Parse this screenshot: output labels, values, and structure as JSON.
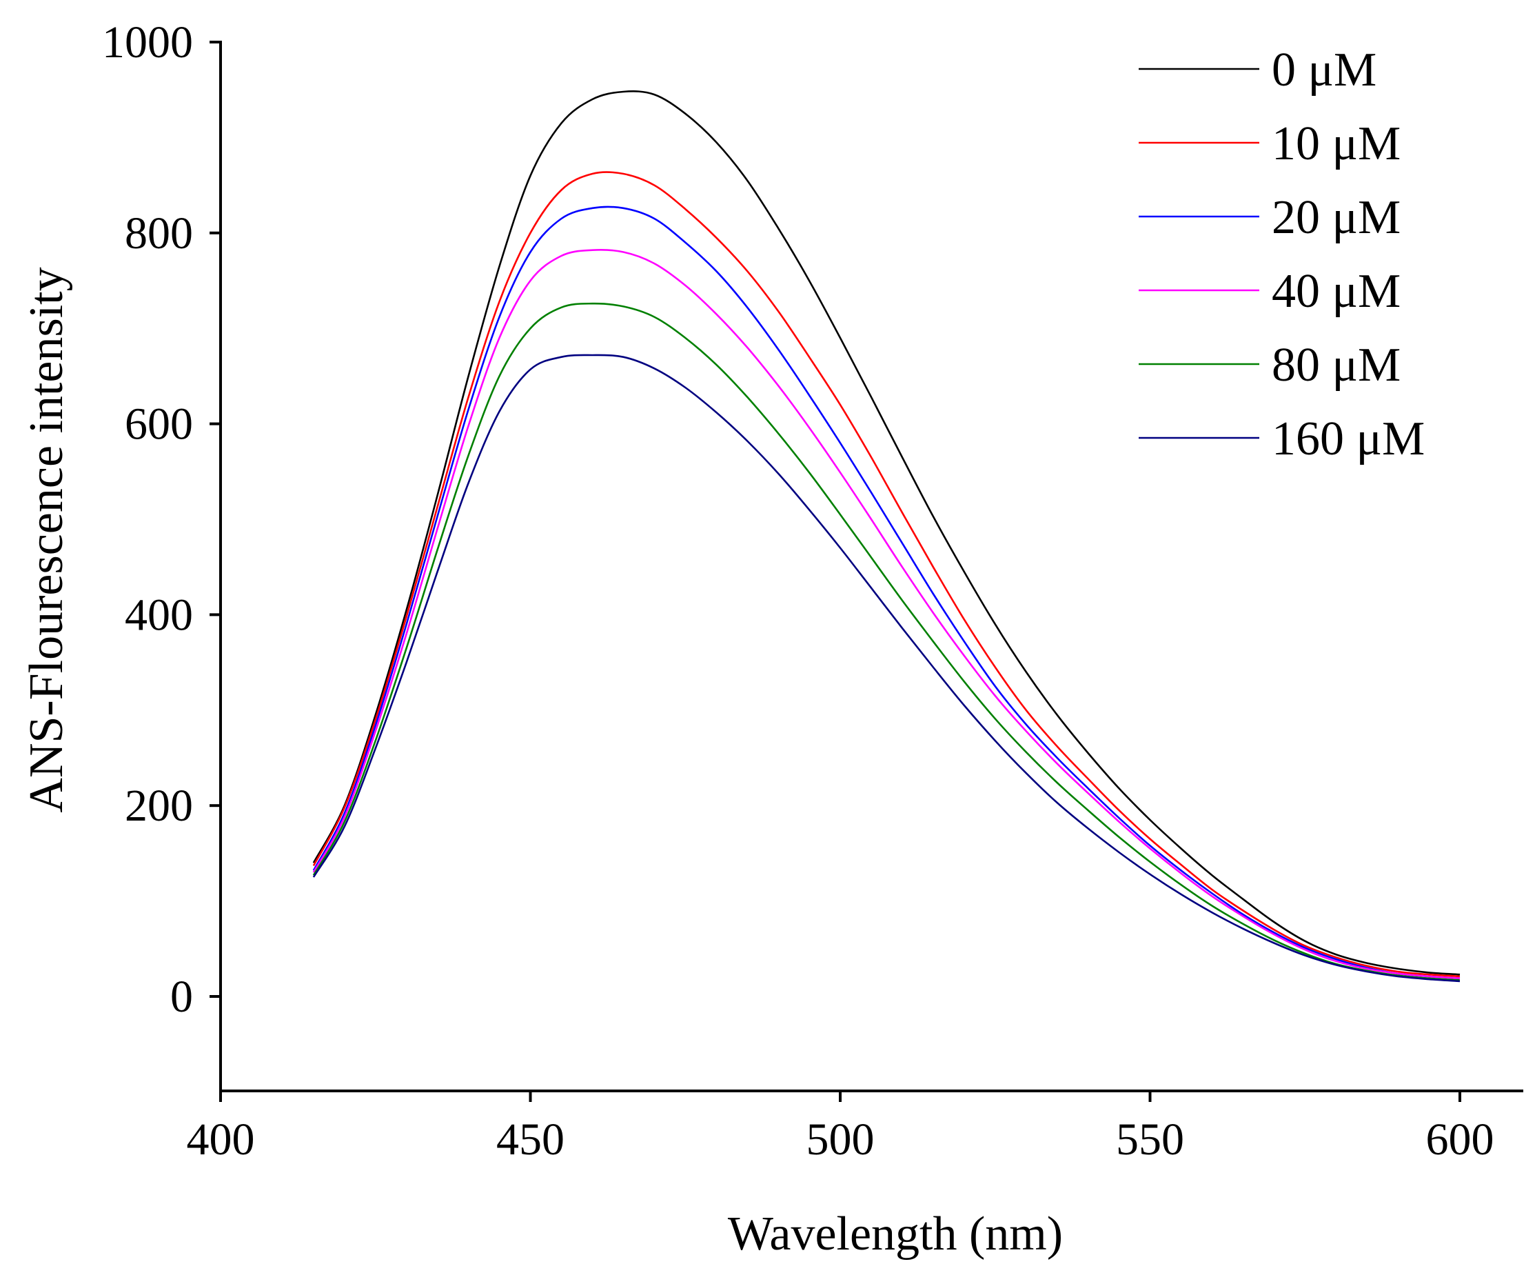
{
  "chart_data": {
    "type": "line",
    "title": "",
    "xlabel": "Wavelength (nm)",
    "ylabel": "ANS-Flourescence intensity",
    "xlim": [
      400,
      610
    ],
    "ylim": [
      -100,
      1000
    ],
    "xticks": [
      400,
      450,
      500,
      550,
      600
    ],
    "yticks": [
      0,
      200,
      400,
      600,
      800,
      1000
    ],
    "grid": false,
    "legend_position": "top-right",
    "x": [
      415,
      420,
      425,
      430,
      435,
      440,
      445,
      450,
      455,
      460,
      465,
      470,
      475,
      480,
      485,
      490,
      495,
      500,
      505,
      510,
      515,
      520,
      525,
      530,
      535,
      540,
      545,
      550,
      555,
      560,
      565,
      570,
      575,
      580,
      585,
      590,
      595,
      600
    ],
    "series": [
      {
        "name": "0 μM",
        "color": "#000000",
        "values": [
          140,
          200,
          295,
          405,
          525,
          650,
          765,
          860,
          915,
          940,
          948,
          945,
          925,
          895,
          855,
          805,
          750,
          690,
          628,
          565,
          503,
          445,
          390,
          340,
          295,
          255,
          218,
          185,
          155,
          127,
          102,
          78,
          58,
          44,
          35,
          29,
          25,
          23
        ]
      },
      {
        "name": "10 μM",
        "color": "#ff0000",
        "values": [
          137,
          198,
          290,
          398,
          513,
          628,
          728,
          800,
          845,
          862,
          862,
          850,
          825,
          795,
          760,
          718,
          670,
          620,
          565,
          507,
          450,
          395,
          345,
          300,
          262,
          228,
          195,
          165,
          138,
          112,
          90,
          70,
          53,
          41,
          32,
          26,
          23,
          21
        ]
      },
      {
        "name": "20 μM",
        "color": "#0000ff",
        "values": [
          132,
          192,
          284,
          390,
          503,
          615,
          712,
          780,
          815,
          826,
          826,
          815,
          790,
          760,
          722,
          678,
          630,
          580,
          528,
          475,
          422,
          372,
          325,
          285,
          250,
          218,
          187,
          158,
          132,
          108,
          86,
          67,
          51,
          39,
          30,
          24,
          21,
          19
        ]
      },
      {
        "name": "40 μM",
        "color": "#ff00ff",
        "values": [
          130,
          188,
          278,
          380,
          490,
          598,
          690,
          750,
          776,
          782,
          780,
          768,
          745,
          715,
          680,
          640,
          596,
          549,
          500,
          450,
          402,
          357,
          315,
          278,
          244,
          213,
          183,
          155,
          129,
          105,
          84,
          65,
          49,
          37,
          29,
          24,
          21,
          19
        ]
      },
      {
        "name": "80 μM",
        "color": "#008000",
        "values": [
          127,
          183,
          268,
          365,
          468,
          567,
          650,
          700,
          722,
          726,
          723,
          712,
          690,
          662,
          628,
          590,
          549,
          505,
          460,
          415,
          372,
          330,
          291,
          256,
          224,
          195,
          167,
          141,
          117,
          95,
          76,
          59,
          45,
          34,
          27,
          22,
          19,
          17
        ]
      },
      {
        "name": "160 μM",
        "color": "#000080",
        "values": [
          125,
          178,
          260,
          350,
          445,
          538,
          613,
          657,
          670,
          672,
          670,
          658,
          638,
          612,
          582,
          548,
          510,
          470,
          428,
          386,
          345,
          305,
          268,
          234,
          203,
          176,
          151,
          128,
          107,
          88,
          71,
          56,
          43,
          33,
          26,
          21,
          18,
          16
        ]
      }
    ]
  }
}
